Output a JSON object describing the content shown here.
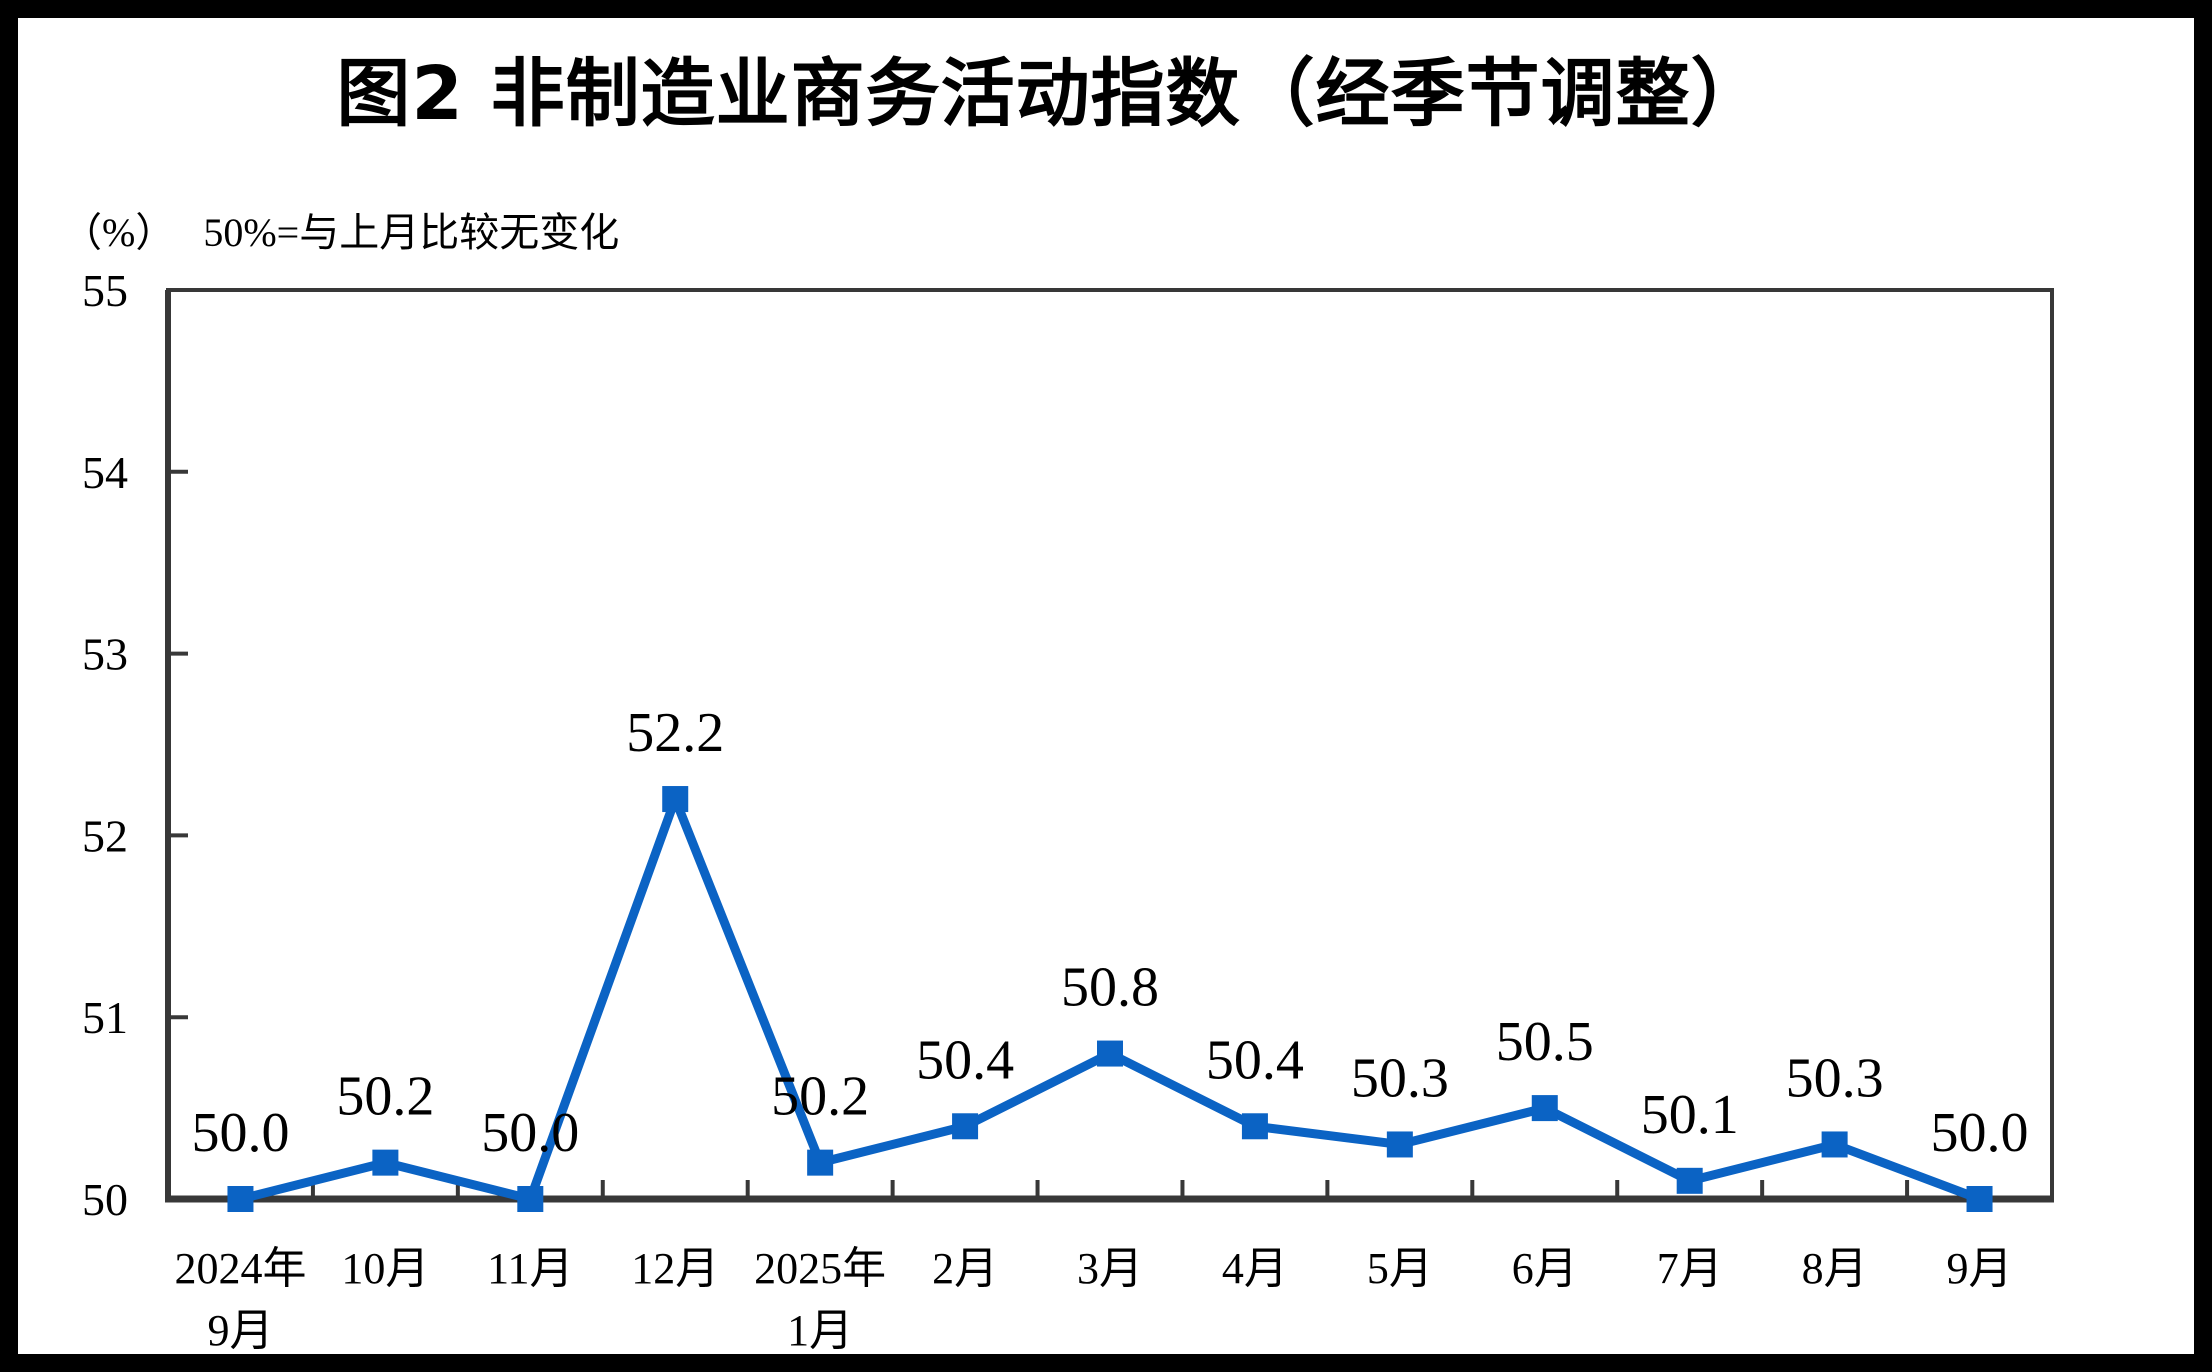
{
  "page": {
    "frame_color": "#000000",
    "canvas_color": "#ffffff"
  },
  "chart_data": {
    "type": "line",
    "title": "图2 非制造业商务活动指数（经季节调整）",
    "unit_label": "（%）",
    "unit_note": "50%=与上月比较无变化",
    "categories": [
      [
        "2024年",
        "9月"
      ],
      [
        "10月"
      ],
      [
        "11月"
      ],
      [
        "12月"
      ],
      [
        "2025年",
        "1月"
      ],
      [
        "2月"
      ],
      [
        "3月"
      ],
      [
        "4月"
      ],
      [
        "5月"
      ],
      [
        "6月"
      ],
      [
        "7月"
      ],
      [
        "8月"
      ],
      [
        "9月"
      ]
    ],
    "series": [
      {
        "values": [
          50.0,
          50.2,
          50.0,
          52.2,
          50.2,
          50.4,
          50.8,
          50.4,
          50.3,
          50.5,
          50.1,
          50.3,
          50.0
        ],
        "point_labels": [
          "50.0",
          "50.2",
          "50.0",
          "52.2",
          "50.2",
          "50.4",
          "50.8",
          "50.4",
          "50.3",
          "50.5",
          "50.1",
          "50.3",
          "50.0"
        ],
        "color": "#0b63c4",
        "marker": "square"
      }
    ],
    "ylim": [
      50,
      55
    ],
    "yticks": [
      "50",
      "51",
      "52",
      "53",
      "54",
      "55"
    ],
    "xlabel": "",
    "ylabel": "",
    "grid": false,
    "legend_position": "none",
    "axis_color": "#383838",
    "text_color": "#000000"
  }
}
